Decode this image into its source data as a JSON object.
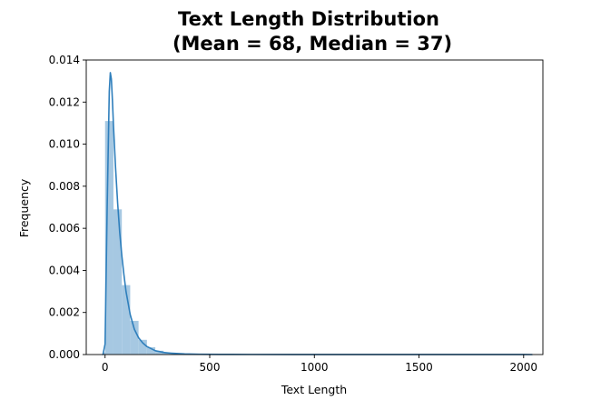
{
  "chart_data": {
    "type": "histogram",
    "title_lines": [
      "Text Length Distribution",
      "(Mean = 68, Median = 37)"
    ],
    "xlabel": "Text Length",
    "ylabel": "Frequency",
    "xlim": [
      -90,
      2092
    ],
    "ylim": [
      0,
      0.014
    ],
    "x_ticks": [
      {
        "value": 0,
        "label": "0"
      },
      {
        "value": 500,
        "label": "500"
      },
      {
        "value": 1000,
        "label": "1000"
      },
      {
        "value": 1500,
        "label": "1500"
      },
      {
        "value": 2000,
        "label": "2000"
      }
    ],
    "y_ticks": [
      {
        "value": 0,
        "label": "0.000"
      },
      {
        "value": 0.002,
        "label": "0.002"
      },
      {
        "value": 0.004,
        "label": "0.004"
      },
      {
        "value": 0.006,
        "label": "0.006"
      },
      {
        "value": 0.008,
        "label": "0.008"
      },
      {
        "value": 0.01,
        "label": "0.010"
      },
      {
        "value": 0.012,
        "label": "0.012"
      },
      {
        "value": 0.014,
        "label": "0.014"
      }
    ],
    "grid": false,
    "histogram": {
      "bin_width": 40,
      "bins": [
        {
          "start": -10,
          "density": 0.0001
        },
        {
          "start": 0,
          "density": 0.0111
        },
        {
          "start": 40,
          "density": 0.0069
        },
        {
          "start": 80,
          "density": 0.0033
        },
        {
          "start": 120,
          "density": 0.0016
        },
        {
          "start": 160,
          "density": 0.0007
        },
        {
          "start": 200,
          "density": 0.00035
        },
        {
          "start": 240,
          "density": 0.00018
        },
        {
          "start": 280,
          "density": 0.0001
        },
        {
          "start": 320,
          "density": 6e-05
        },
        {
          "start": 360,
          "density": 4e-05
        },
        {
          "start": 400,
          "density": 3e-05
        },
        {
          "start": 440,
          "density": 2e-05
        },
        {
          "start": 480,
          "density": 1.5e-05
        },
        {
          "start": 520,
          "density": 1e-05
        },
        {
          "start": 560,
          "density": 1e-05
        },
        {
          "start": 600,
          "density": 8e-06
        },
        {
          "start": 640,
          "density": 8e-06
        }
      ]
    },
    "kde": {
      "x": [
        -10,
        0,
        10,
        20,
        25,
        30,
        35,
        40,
        50,
        60,
        70,
        80,
        90,
        100,
        120,
        140,
        160,
        180,
        200,
        240,
        280,
        320,
        380,
        450,
        550,
        700,
        900,
        1200,
        1500,
        1800,
        2000,
        2040
      ],
      "y": [
        0.0,
        0.0005,
        0.007,
        0.0125,
        0.0134,
        0.0131,
        0.0121,
        0.0109,
        0.0089,
        0.0072,
        0.0058,
        0.0047,
        0.0038,
        0.003,
        0.0019,
        0.0012,
        0.0008,
        0.00055,
        0.00038,
        0.00018,
        0.0001,
        6e-05,
        3e-05,
        1.5e-05,
        8e-06,
        5e-06,
        4e-06,
        3e-06,
        3e-06,
        2e-06,
        2e-06,
        0.0
      ]
    },
    "colors": {
      "bar_fill": "#a6c8e2",
      "kde_line": "#2f7fbc",
      "axis": "#000000"
    }
  }
}
